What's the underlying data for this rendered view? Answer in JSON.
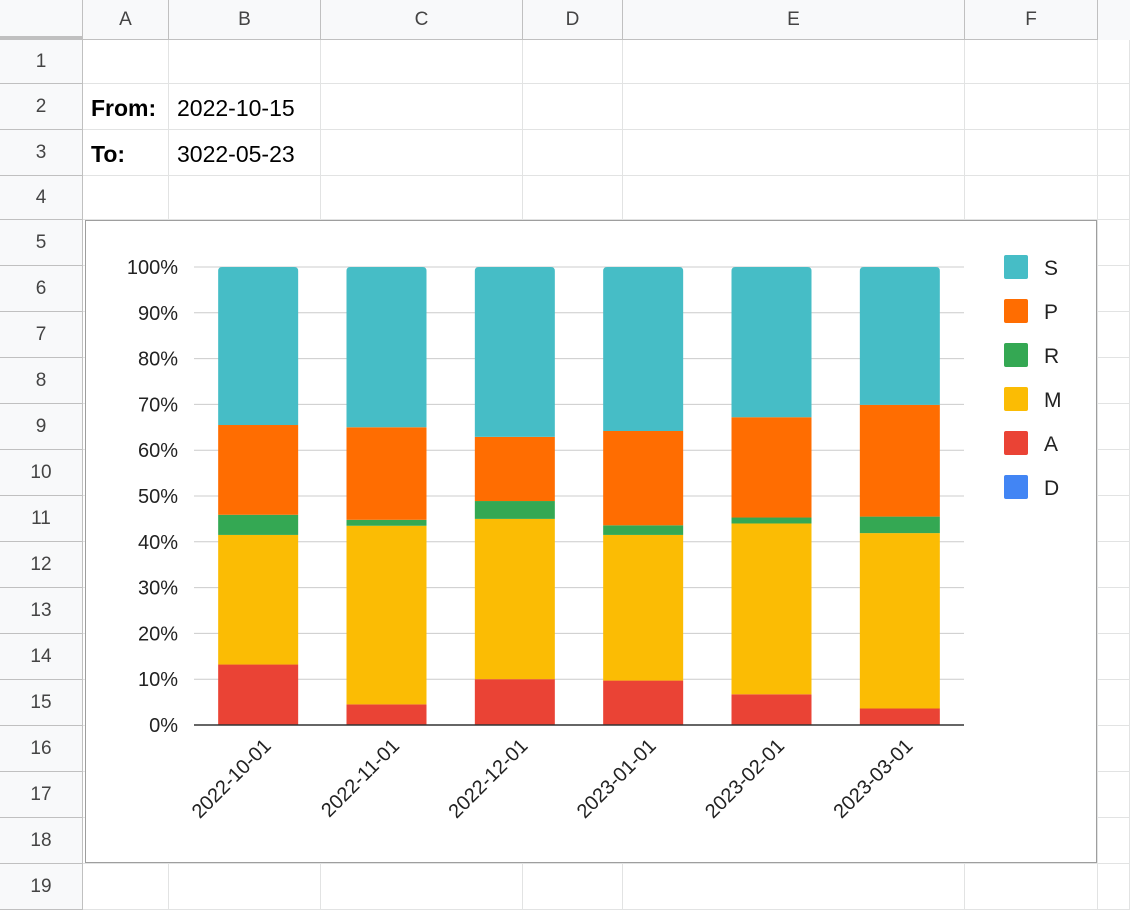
{
  "grid": {
    "columns": [
      "A",
      "B",
      "C",
      "D",
      "E",
      "F"
    ],
    "rows": [
      "1",
      "2",
      "3",
      "4",
      "5",
      "6",
      "7",
      "8",
      "9",
      "10",
      "11",
      "12",
      "13",
      "14",
      "15",
      "16",
      "17",
      "18",
      "19"
    ]
  },
  "cells": {
    "A2": "From:",
    "B2": "2022-10-15",
    "A3": "To:",
    "B3": "3022-05-23"
  },
  "chart_data": {
    "type": "bar",
    "stacked": "percent",
    "categories": [
      "2022-10-01",
      "2022-11-01",
      "2022-12-01",
      "2023-01-01",
      "2023-02-01",
      "2023-03-01"
    ],
    "y_ticks": [
      "0%",
      "10%",
      "20%",
      "30%",
      "40%",
      "50%",
      "60%",
      "70%",
      "80%",
      "90%",
      "100%"
    ],
    "ylim": [
      0,
      100
    ],
    "grid": true,
    "legend_position": "right",
    "series": [
      {
        "name": "D",
        "color": "#4285f4",
        "values": [
          0,
          0,
          0,
          0,
          0,
          0
        ]
      },
      {
        "name": "A",
        "color": "#ea4335",
        "values": [
          13.2,
          4.5,
          10.0,
          9.7,
          6.7,
          3.6
        ]
      },
      {
        "name": "M",
        "color": "#fbbc04",
        "values": [
          28.3,
          39.0,
          35.0,
          31.8,
          37.3,
          38.3
        ]
      },
      {
        "name": "R",
        "color": "#34a853",
        "values": [
          4.4,
          1.3,
          3.9,
          2.1,
          1.3,
          3.6
        ]
      },
      {
        "name": "P",
        "color": "#ff6d01",
        "values": [
          19.6,
          20.2,
          14.0,
          20.6,
          21.9,
          24.4
        ]
      },
      {
        "name": "S",
        "color": "#46bdc6",
        "values": [
          34.5,
          35.0,
          37.1,
          35.8,
          32.8,
          30.1
        ]
      }
    ]
  }
}
